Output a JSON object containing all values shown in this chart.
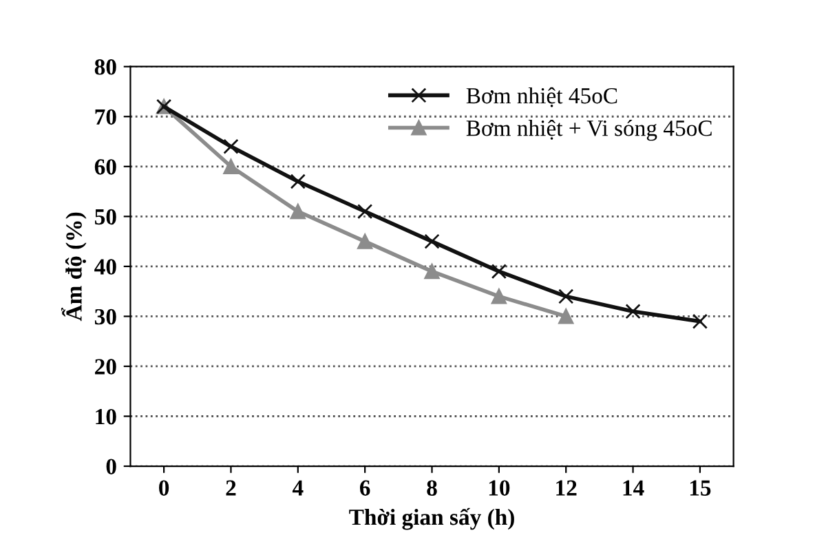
{
  "chart_data": {
    "type": "line",
    "xlabel": "Thời gian sấy (h)",
    "ylabel": "Ẩm độ (%)",
    "categories": [
      "0",
      "2",
      "4",
      "6",
      "8",
      "10",
      "12",
      "14",
      "15"
    ],
    "series": [
      {
        "name": "Bơm nhiệt 45oC",
        "color": "#111111",
        "marker": "cross",
        "values": [
          72,
          64,
          57,
          51,
          45,
          39,
          34,
          31,
          29
        ]
      },
      {
        "name": "Bơm nhiệt + Vi sóng 45oC",
        "color": "#8c8c8c",
        "marker": "triangle",
        "values": [
          72,
          60,
          51,
          45,
          39,
          34,
          30,
          null,
          null
        ]
      }
    ],
    "ylim": [
      0,
      80
    ],
    "yticks": [
      0,
      10,
      20,
      30,
      40,
      50,
      60,
      70,
      80
    ],
    "grid": "y",
    "legend": "top right",
    "line_style": "solid"
  }
}
